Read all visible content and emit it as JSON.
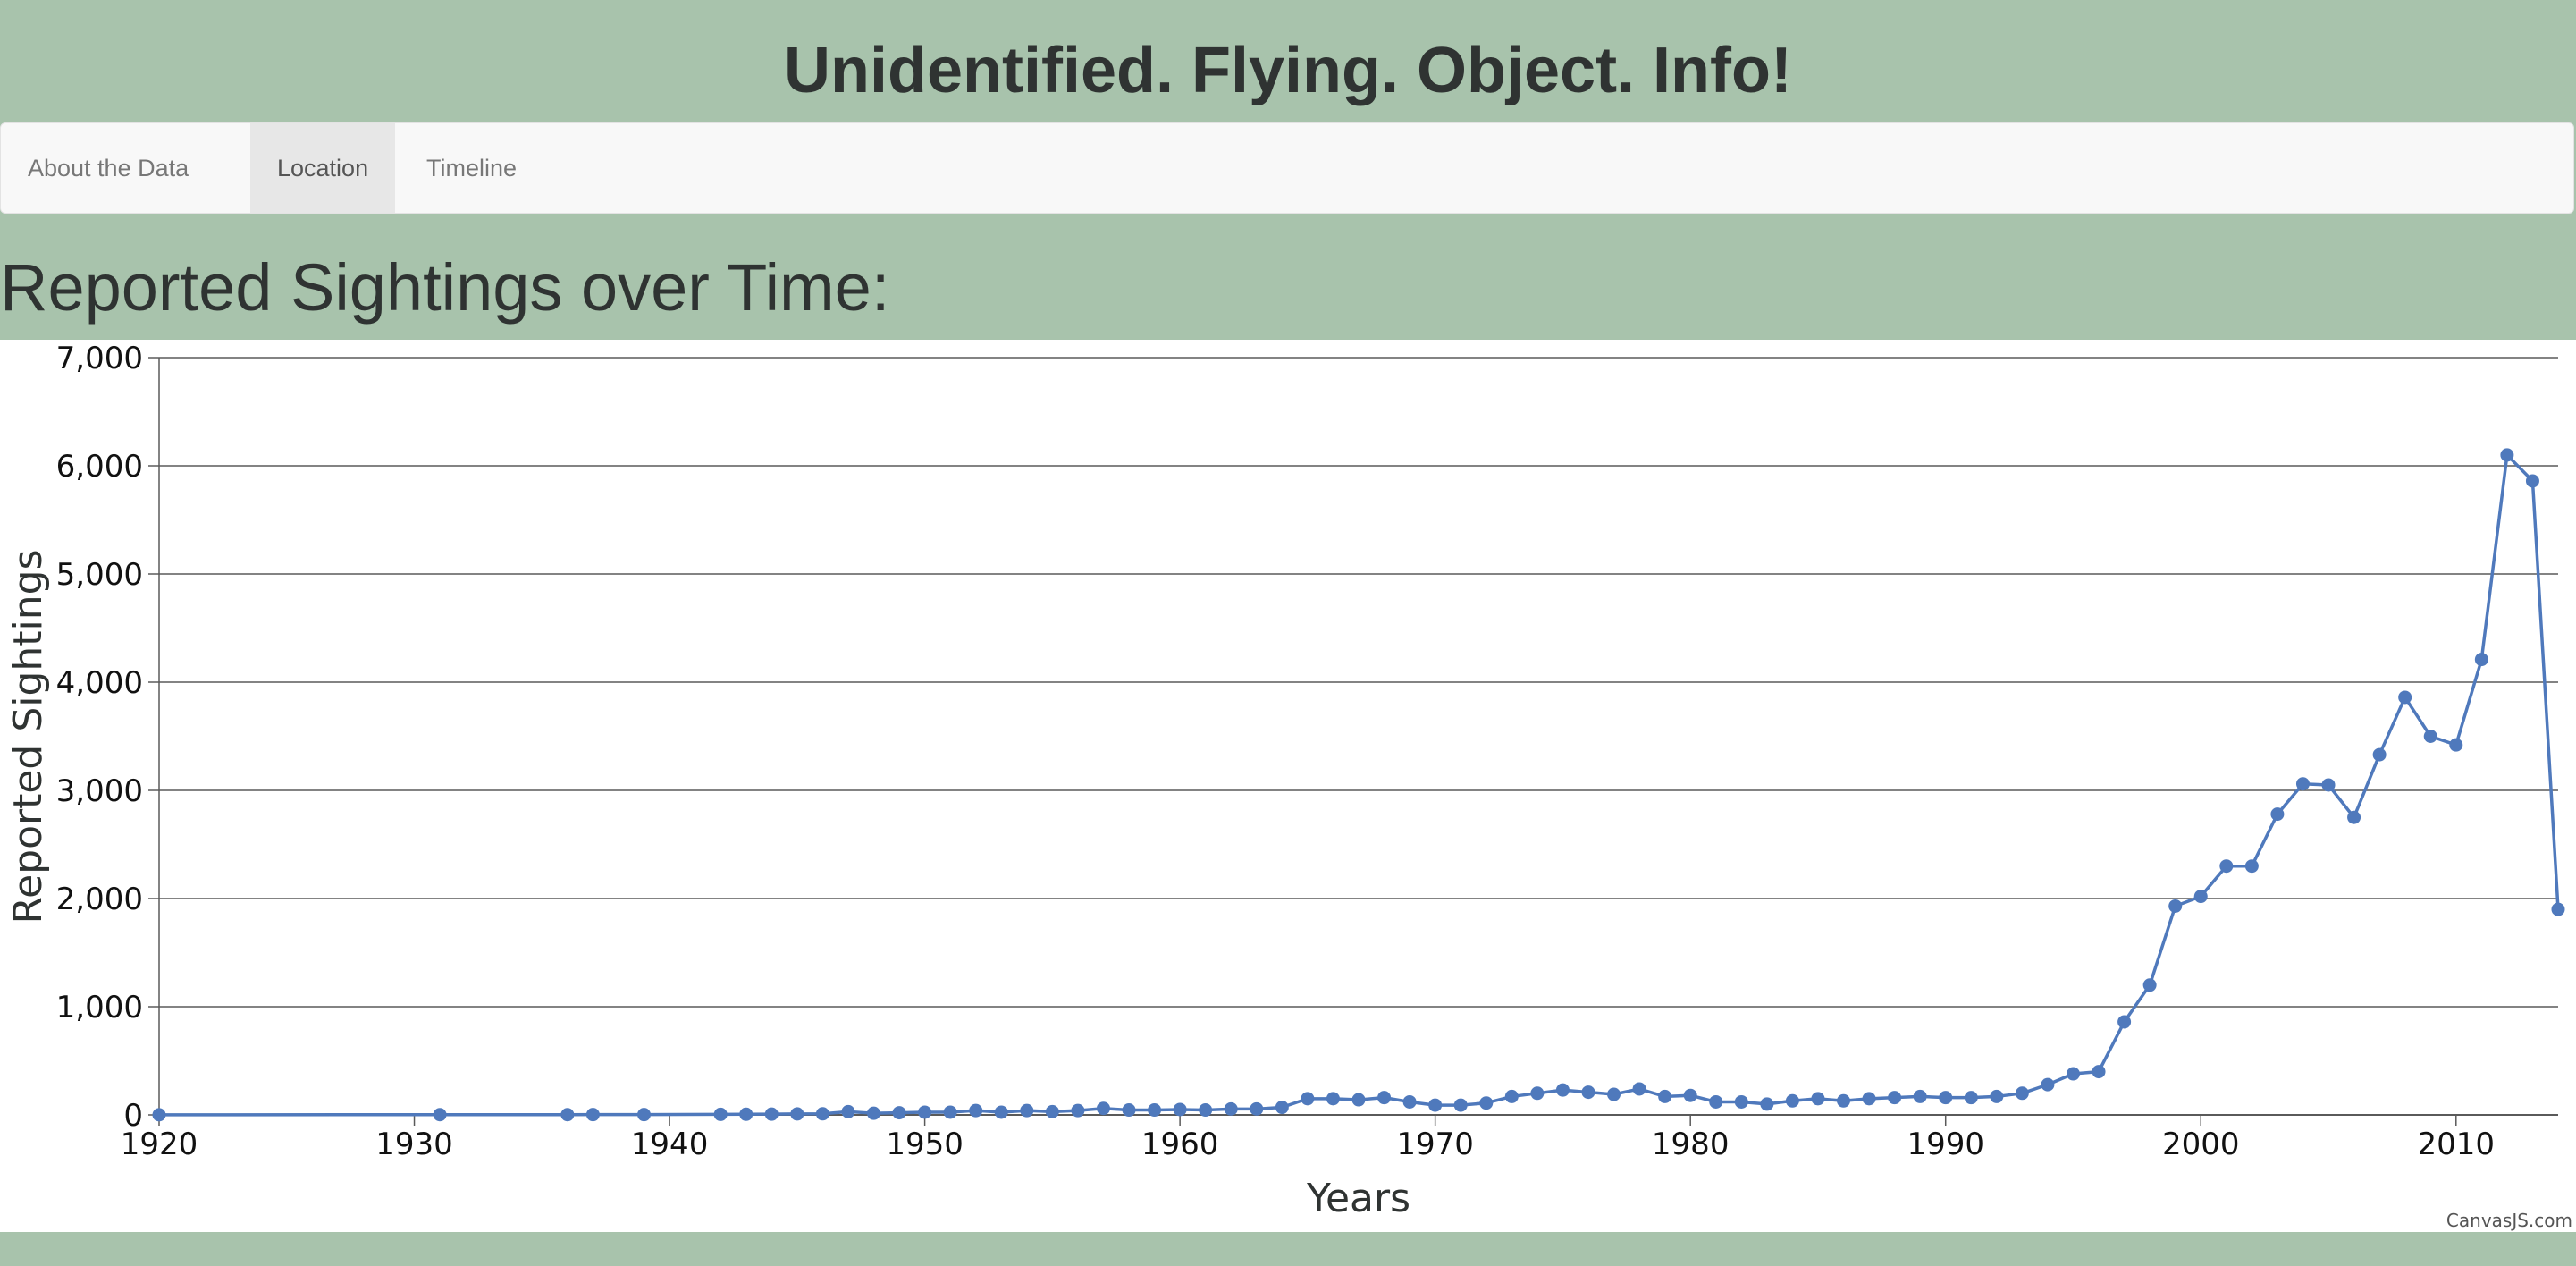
{
  "page": {
    "title": "Unidentified. Flying. Object. Info!",
    "section_title": "Reported Sightings over Time:"
  },
  "nav": {
    "items": [
      {
        "label": "About the Data",
        "active": false
      },
      {
        "label": "Location",
        "active": true
      },
      {
        "label": "Timeline",
        "active": false
      }
    ]
  },
  "chart_credit": "CanvasJS.com",
  "colors": {
    "background": "#a8c3ac",
    "series": "#4f79bc",
    "panel": "#ffffff"
  },
  "chart_data": {
    "type": "line",
    "title": "",
    "xlabel": "Years",
    "ylabel": "Reported Sightings",
    "xlim": [
      1920,
      2014
    ],
    "ylim": [
      0,
      7000
    ],
    "x_ticks": [
      1920,
      1930,
      1940,
      1950,
      1960,
      1970,
      1980,
      1990,
      2000,
      2010
    ],
    "y_ticks": [
      0,
      1000,
      2000,
      3000,
      4000,
      5000,
      6000,
      7000
    ],
    "x_tick_labels": [
      "1920",
      "1930",
      "1940",
      "1950",
      "1960",
      "1970",
      "1980",
      "1990",
      "2000",
      "2010"
    ],
    "y_tick_labels": [
      "0",
      "1,000",
      "2,000",
      "3,000",
      "4,000",
      "5,000",
      "6,000",
      "7,000"
    ],
    "grid": "horizontal",
    "legend": "none",
    "series": [
      {
        "x": [
          1920,
          1931,
          1936,
          1937,
          1939,
          1942,
          1943,
          1944,
          1945,
          1946,
          1947,
          1948,
          1949,
          1950,
          1951,
          1952,
          1953,
          1954,
          1955,
          1956,
          1957,
          1958,
          1959,
          1960,
          1961,
          1962,
          1963,
          1964,
          1965,
          1966,
          1967,
          1968,
          1969,
          1970,
          1971,
          1972,
          1973,
          1974,
          1975,
          1976,
          1977,
          1978,
          1979,
          1980,
          1981,
          1982,
          1983,
          1984,
          1985,
          1986,
          1987,
          1988,
          1989,
          1990,
          1991,
          1992,
          1993,
          1994,
          1995,
          1996,
          1997,
          1998,
          1999,
          2000,
          2001,
          2002,
          2003,
          2004,
          2005,
          2006,
          2007,
          2008,
          2009,
          2010,
          2011,
          2012,
          2013,
          2014
        ],
        "values": [
          1,
          2,
          2,
          3,
          3,
          5,
          6,
          7,
          9,
          10,
          30,
          15,
          20,
          25,
          25,
          40,
          25,
          40,
          30,
          40,
          60,
          45,
          45,
          50,
          45,
          55,
          55,
          70,
          150,
          150,
          140,
          160,
          120,
          90,
          90,
          110,
          170,
          200,
          230,
          210,
          190,
          240,
          170,
          180,
          120,
          120,
          100,
          130,
          150,
          130,
          150,
          160,
          170,
          160,
          160,
          170,
          200,
          280,
          380,
          400,
          860,
          1200,
          1930,
          2020,
          2300,
          2300,
          2780,
          3060,
          3050,
          2750,
          3330,
          3860,
          3500,
          3420,
          4210,
          6100,
          5860,
          1900
        ]
      }
    ]
  }
}
